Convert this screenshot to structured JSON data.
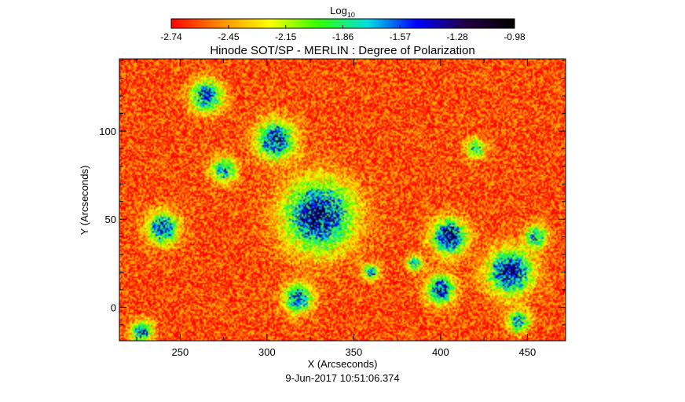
{
  "chart_data": {
    "type": "heatmap",
    "title": "Hinode SOT/SP - MERLIN : Degree of Polarization",
    "xlabel": "X (Arcseconds)",
    "ylabel": "Y (Arcseconds)",
    "footer": "9-Jun-2017 10:51:06.374",
    "xlim": [
      215,
      472
    ],
    "ylim": [
      -19,
      141
    ],
    "xticks": [
      250,
      300,
      350,
      400,
      450
    ],
    "yticks": [
      0,
      50,
      100
    ],
    "colorbar": {
      "label_main": "Log",
      "label_sub": "10",
      "range": [
        -2.74,
        -0.98
      ],
      "ticks": [
        "-2.74",
        "-2.45",
        "-2.15",
        "-1.86",
        "-1.57",
        "-1.28",
        "-0.98"
      ],
      "colors": [
        "#ff0000",
        "#ff8c00",
        "#ffff00",
        "#33ff00",
        "#00e0e0",
        "#0000ff",
        "#220044",
        "#000000"
      ]
    },
    "background_level": -2.6,
    "regions": [
      {
        "x": 330,
        "y": 52,
        "r": 22,
        "peak": -1.1
      },
      {
        "x": 305,
        "y": 95,
        "r": 12,
        "peak": -1.2
      },
      {
        "x": 265,
        "y": 120,
        "r": 10,
        "peak": -1.3
      },
      {
        "x": 240,
        "y": 45,
        "r": 10,
        "peak": -1.3
      },
      {
        "x": 405,
        "y": 40,
        "r": 11,
        "peak": -1.1
      },
      {
        "x": 440,
        "y": 20,
        "r": 14,
        "peak": -1.1
      },
      {
        "x": 400,
        "y": 10,
        "r": 9,
        "peak": -1.2
      },
      {
        "x": 318,
        "y": 5,
        "r": 9,
        "peak": -1.3
      },
      {
        "x": 228,
        "y": -14,
        "r": 7,
        "peak": -1.4
      },
      {
        "x": 455,
        "y": 40,
        "r": 7,
        "peak": -1.5
      },
      {
        "x": 385,
        "y": 25,
        "r": 5,
        "peak": -1.6
      },
      {
        "x": 360,
        "y": 20,
        "r": 5,
        "peak": -1.5
      },
      {
        "x": 420,
        "y": 90,
        "r": 6,
        "peak": -1.6
      },
      {
        "x": 275,
        "y": 78,
        "r": 8,
        "peak": -1.5
      },
      {
        "x": 445,
        "y": -8,
        "r": 7,
        "peak": -1.5
      }
    ]
  }
}
